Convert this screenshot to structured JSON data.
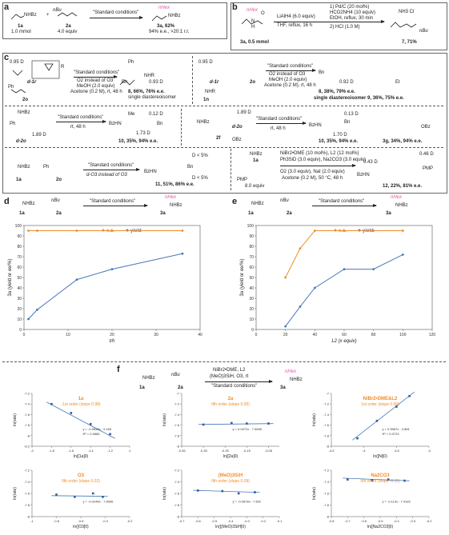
{
  "panel_labels": [
    "a",
    "b",
    "c",
    "d",
    "e",
    "f"
  ],
  "schemes": {
    "a": {
      "r1": "NHBz",
      "r1_id": "1a",
      "r1_eq": "1.0 mmol",
      "plus": "+",
      "r2_pre": "nBu",
      "r2_id": "2a",
      "r2_eq": "4.0 equiv",
      "cond": "\"Standard conditions\"",
      "p_r": "nHex",
      "p_nh": "NHBz",
      "p_id": "3a, 62%",
      "p_sel": "94% e.e., >20:1 r.r."
    },
    "b": {
      "sm_r": "nHex",
      "sm_id": "3a, 0.5 mmol",
      "cond1": "LiAlH4 (6.0 equiv)",
      "cond2": "THF, reflux, 16 h",
      "s1": "1) Pd/C (20 mol%)",
      "s2": "HCO2NH4 (10 equiv)",
      "s3": "EtOH, reflux, 30 min",
      "s4": "2) HCl (1.0 M)",
      "p_salt": "NH3 Cl",
      "p_bu": "nBu",
      "p_id": "7, 71%",
      "nlbl": "N",
      "hl": "H",
      "ol": "O"
    },
    "c": {
      "c1_d": "0.95 D",
      "c1_cond": "\"Standard conditions\"",
      "c1_o2": "O2 instead of O3",
      "c1_meoh": "MeOH (2.0 equiv)",
      "c1_ace": "Acetone (0.2 M), rt, 48 h",
      "c1_r": "R",
      "c1_ph": "Ph",
      "c1_id": "d-1r",
      "c1_2o": "2o",
      "c1_bn": "Bn",
      "c1_d2": "0.93 D",
      "c1_nhr": "NHR",
      "c1_prod": "8, 66%, 76% e.e.",
      "c1_sd": "single diastereoisomer",
      "c2_d": "0.95 D",
      "c2_id1": "d-1r",
      "c2_id2": "1n",
      "c2_nhr": "NHR",
      "c2_2o": "2o",
      "c2_cond": "\"Standard conditions\"",
      "c2_o2": "O2 instead of O3",
      "c2_meoh": "MeOH (2.0 equiv)",
      "c2_ace": "Acetone (0.2 M), rt, 48 h",
      "c2_d2": "0.92 D",
      "c2_bn": "Bn",
      "c2_et": "Et",
      "c2_prod1": "8, 38%, 79% e.e.",
      "c2_prod2": "single diastereoisomer  9, 36%, 75% e.e.",
      "c3_sm": "NHBz",
      "c3_ph": "Ph",
      "c3_d": "1.89 D",
      "c3_id": "d-2o",
      "c3_cond": "\"Standard conditions\"",
      "c3_rt": "rt, 48 h",
      "c3_me": "Me",
      "c3_d2": "0.12 D",
      "c3_bz": "BzHN",
      "c3_bn": "Bn",
      "c3_d3": "1.73 D",
      "c3_prod": "10, 35%, 94% e.e.",
      "c4_nhbz": "NHBz",
      "c4_d": "1.89 D",
      "c4_id": "d-2o",
      "c4_2f": "2f",
      "c4_obz": "OBz",
      "c4_cond": "\"Standard conditions\"",
      "c4_rt": "rt, 48 h",
      "c4_d2": "0.13 D",
      "c4_bz": "BzHN",
      "c4_bn": "Bn",
      "c4_d3": "1.70 D",
      "c4_prod1": "10, 35%, 94% e.e.",
      "c4_prod2": "3g, 34%, 94% e.e.",
      "c5_nhbz": "NHBz",
      "c5_1a": "1a",
      "c5_2o": "2o",
      "c5_ph": "Ph",
      "c5_cond": "\"Standard conditions\"",
      "c5_o3": "d-O3 instead of O3",
      "c5_d1": "D < 5%",
      "c5_d2": "D < 5%",
      "c5_bz": "BzHN",
      "c5_bn": "Bn",
      "c5_prod": "11, 51%, 86% e.e.",
      "c6_nhbz": "NHBz",
      "c6_1a": "1a",
      "c6_pmp": "PMP",
      "c6_eq": "8.0 equiv",
      "c6_l1": "NiBr2•DME (10 mol%), L2 (12 mol%)",
      "c6_l2": "Ph3SiD (3.0 equiv), Na2CO3 (3.0 equiv)",
      "c6_l3": "O2 (3.0 equiv), NaI (2.0 equiv)",
      "c6_l4": "Acetone (0.2 M), 50 °C, 48 h",
      "c6_d1": "0.43 D",
      "c6_d2": "0.46 D",
      "c6_bz": "BzHN",
      "c6_pmp2": "PMP",
      "c6_prod": "12, 22%, 81% e.e."
    },
    "d": {
      "r1": "NHBz",
      "r1_id": "1a",
      "r2": "nBu",
      "r2_id": "2a",
      "cond": "\"Standard conditions\"",
      "p": "nHex",
      "p_nh": "NHBz",
      "p_id": "3a"
    },
    "e": {
      "r1": "NHBz",
      "r1_id": "1a",
      "r2": "nBu",
      "r2_id": "2a",
      "cond": "\"Standard conditions\"",
      "p": "nHex",
      "p_nh": "NHBz",
      "p_id": "3a"
    },
    "f": {
      "r1": "NHBz",
      "r1_id": "1a",
      "r2": "nBu",
      "r2_id": "2a",
      "c1": "NiBr2•DME, L2",
      "c2": "(MeO)3SiH, O3, rt",
      "cond": "\"Standard conditions\"",
      "p": "nHex",
      "p_nh": "NHBz",
      "p_id": "3a"
    }
  },
  "chart_data": [
    {
      "type": "line",
      "panel": "d",
      "xlabel": "t/h",
      "ylabel": "3a (yield or ee/%)",
      "xlim": [
        0,
        40
      ],
      "ylim": [
        0,
        100
      ],
      "xticks": [
        0,
        10,
        20,
        30,
        40
      ],
      "yticks": [
        0,
        10,
        20,
        30,
        40,
        50,
        60,
        70,
        80,
        90,
        100
      ],
      "legend": [
        {
          "label": "e.e.",
          "color": "#f08c2a"
        },
        {
          "label": "yield",
          "color": "#4a78b8"
        }
      ],
      "series": [
        {
          "name": "e.e.",
          "color": "#f08c2a",
          "x": [
            1,
            3,
            12,
            20,
            36
          ],
          "y": [
            95,
            95,
            95,
            95,
            95
          ]
        },
        {
          "name": "yield",
          "color": "#4a78b8",
          "x": [
            1,
            3,
            12,
            20,
            36
          ],
          "y": [
            10,
            19,
            48,
            58,
            73
          ]
        }
      ]
    },
    {
      "type": "line",
      "panel": "e",
      "xlabel": "L2 (x equiv)",
      "ylabel": "3a (yield or ee/%)",
      "xlim": [
        0,
        120
      ],
      "ylim": [
        0,
        100
      ],
      "xticks": [
        0,
        20,
        40,
        60,
        80,
        100,
        120
      ],
      "yticks": [
        0,
        10,
        20,
        30,
        40,
        50,
        60,
        70,
        80,
        90,
        100
      ],
      "legend": [
        {
          "label": "e.e.",
          "color": "#f08c2a"
        },
        {
          "label": "yield",
          "color": "#4a78b8"
        }
      ],
      "series": [
        {
          "name": "e.e.",
          "color": "#f08c2a",
          "x": [
            20,
            30,
            40,
            60,
            80,
            100
          ],
          "y": [
            50,
            78,
            95,
            95,
            95,
            95
          ]
        },
        {
          "name": "yield",
          "color": "#4a78b8",
          "x": [
            20,
            30,
            40,
            60,
            80,
            100
          ],
          "y": [
            3,
            22,
            40,
            58,
            58,
            72
          ]
        }
      ]
    },
    {
      "type": "scatter",
      "panel": "f1",
      "title": "1a",
      "subtitle": "-1st order (slope 0.98)",
      "xlabel": "ln([1a]0)",
      "ylabel": "ln(rate)",
      "xlim": [
        -2,
        -1
      ],
      "ylim": [
        -8.2,
        -7.2
      ],
      "xticks": [
        -2,
        -1.8,
        -1.6,
        -1.4,
        -1.2,
        -1
      ],
      "yticks": [
        -8.2,
        -8,
        -7.8,
        -7.6,
        -7.4,
        -7.2
      ],
      "eq": "y = -0.9836x - 9.183",
      "r2": "R² = 0.9885",
      "points": {
        "x": [
          -1.8,
          -1.6,
          -1.4,
          -1.2
        ],
        "y": [
          -7.4,
          -7.57,
          -7.78,
          -7.97
        ]
      },
      "fit": {
        "slope": -0.9836,
        "intercept": -9.183
      }
    },
    {
      "type": "scatter",
      "panel": "f2",
      "title": "2a",
      "subtitle": "0th order (slope 0.05)",
      "xlabel": "ln([2a]0)",
      "ylabel": "ln(rate)",
      "xlim": [
        -0.45,
        0
      ],
      "ylim": [
        -8,
        -7
      ],
      "xticks": [
        -0.45,
        -0.35,
        -0.25,
        -0.15,
        -0.05
      ],
      "yticks": [
        -8,
        -7.8,
        -7.6,
        -7.4,
        -7.2,
        -7
      ],
      "eq": "y = 0.0472x - 7.5695",
      "points": {
        "x": [
          -0.35,
          -0.22,
          -0.15,
          -0.05
        ],
        "y": [
          -7.59,
          -7.56,
          -7.57,
          -7.57
        ]
      },
      "fit": {
        "slope": 0.0472,
        "intercept": -7.5695
      }
    },
    {
      "type": "scatter",
      "panel": "f3",
      "title": "NiBr2•DME&L2",
      "subtitle": "1st order (slope 0.96)",
      "xlabel": "ln([Ni]0)",
      "ylabel": "ln(rate)",
      "xlim": [
        -4.5,
        -3
      ],
      "ylim": [
        -8,
        -7
      ],
      "xticks": [
        -4.5,
        -4,
        -3.5,
        -3
      ],
      "yticks": [
        -8,
        -7.8,
        -7.6,
        -7.4,
        -7.2,
        -7
      ],
      "eq": "y = 0.9587x - 3.881",
      "r2": "R² = 0.9723",
      "points": {
        "x": [
          -4.1,
          -3.8,
          -3.5,
          -3.3
        ],
        "y": [
          -7.85,
          -7.52,
          -7.25,
          -7.05
        ]
      },
      "fit": {
        "slope": 0.9587,
        "intercept": -3.881
      }
    },
    {
      "type": "scatter",
      "panel": "f4",
      "title": "O3",
      "subtitle": "0th order (slope 0.02)",
      "xlabel": "ln([O3]0)",
      "ylabel": "ln(rate)",
      "xlim": [
        -1,
        -0.2
      ],
      "ylim": [
        -8,
        -7.2
      ],
      "xticks": [
        -1,
        -0.8,
        -0.6,
        -0.4,
        -0.2
      ],
      "yticks": [
        -8,
        -7.8,
        -7.6,
        -7.4,
        -7.2
      ],
      "eq": "y = -0.0248x - 7.6596",
      "points": {
        "x": [
          -0.8,
          -0.65,
          -0.5,
          -0.42
        ],
        "y": [
          -7.62,
          -7.66,
          -7.6,
          -7.66
        ]
      },
      "fit": {
        "slope": -0.0248,
        "intercept": -7.6596
      }
    },
    {
      "type": "scatter",
      "panel": "f5",
      "title": "(MeO)3SiH",
      "subtitle": "0th order (slope 0.09)",
      "xlabel": "ln([(MeO)3SiH]0)",
      "ylabel": "ln(rate)",
      "xlim": [
        -0.7,
        -0.1
      ],
      "ylim": [
        -8,
        -7.2
      ],
      "xticks": [
        -0.7,
        -0.6,
        -0.5,
        -0.4,
        -0.3,
        -0.2,
        -0.1
      ],
      "yticks": [
        -8,
        -7.8,
        -7.6,
        -7.4,
        -7.2
      ],
      "eq": "y = -0.0878x - 7.602",
      "points": {
        "x": [
          -0.6,
          -0.45,
          -0.35,
          -0.25
        ],
        "y": [
          -7.55,
          -7.56,
          -7.6,
          -7.58
        ]
      },
      "fit": {
        "slope": -0.0878,
        "intercept": -7.602
      }
    },
    {
      "type": "scatter",
      "panel": "f6",
      "title": "Na2CO3",
      "subtitle": "0th order (slope -0.11)",
      "xlabel": "ln([Na2CO3]0)",
      "ylabel": "ln(rate)",
      "xlim": [
        -0.8,
        -0.2
      ],
      "ylim": [
        -8,
        -7.2
      ],
      "xticks": [
        -0.8,
        -0.7,
        -0.6,
        -0.5,
        -0.4,
        -0.3,
        -0.2
      ],
      "yticks": [
        -8,
        -7.8,
        -7.6,
        -7.4,
        -7.2
      ],
      "eq": "y = -0.113x - 7.4182",
      "points": {
        "x": [
          -0.7,
          -0.55,
          -0.45,
          -0.35
        ],
        "y": [
          -7.36,
          -7.37,
          -7.36,
          -7.38
        ]
      },
      "fit": {
        "slope": -0.113,
        "intercept": -7.4182
      }
    }
  ]
}
